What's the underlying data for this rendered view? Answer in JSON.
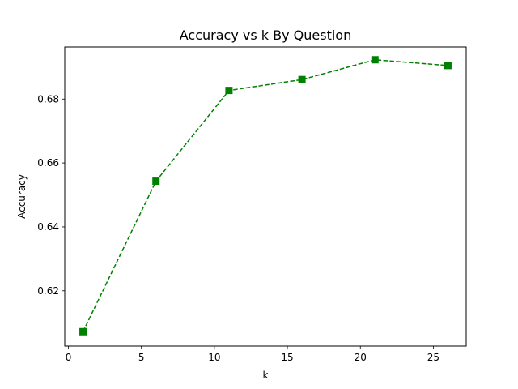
{
  "chart_data": {
    "type": "line",
    "title": "Accuracy vs k By Question",
    "xlabel": "k",
    "ylabel": "Accuracy",
    "xlim": [
      -0.25,
      27.25
    ],
    "ylim": [
      0.6027,
      0.6963
    ],
    "x_ticks": [
      0,
      5,
      10,
      15,
      20,
      25
    ],
    "y_ticks": [
      0.62,
      0.64,
      0.66,
      0.68
    ],
    "grid": false,
    "series": [
      {
        "color": "#008000",
        "line_style": "dashed",
        "marker": "square",
        "x": [
          1,
          6,
          11,
          16,
          21,
          26
        ],
        "y": [
          0.6072,
          0.6543,
          0.6827,
          0.6861,
          0.6923,
          0.6905
        ]
      }
    ]
  }
}
